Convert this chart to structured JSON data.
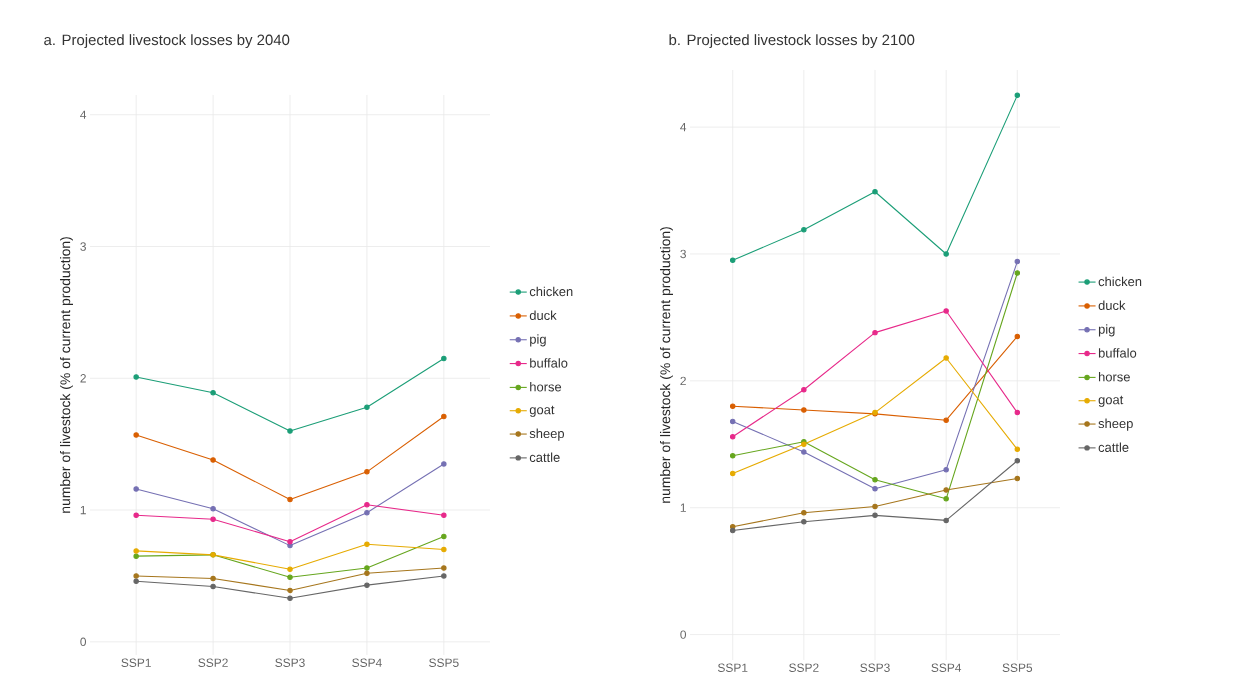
{
  "chart_data": [
    {
      "type": "line",
      "title": "a. Projected livestock losses by 2040",
      "ylabel": "number of livestock (% of current production)",
      "categories": [
        "SSP1",
        "SSP2",
        "SSP3",
        "SSP4",
        "SSP5"
      ],
      "series": [
        {
          "name": "chicken",
          "color": "#1b9e77",
          "values": [
            2.01,
            1.89,
            1.6,
            1.78,
            2.15
          ]
        },
        {
          "name": "duck",
          "color": "#d95f02",
          "values": [
            1.57,
            1.38,
            1.08,
            1.29,
            1.71
          ]
        },
        {
          "name": "pig",
          "color": "#7570b3",
          "values": [
            1.16,
            1.01,
            0.73,
            0.98,
            1.35
          ]
        },
        {
          "name": "buffalo",
          "color": "#e7298a",
          "values": [
            0.96,
            0.93,
            0.76,
            1.04,
            0.96
          ]
        },
        {
          "name": "horse",
          "color": "#66a61e",
          "values": [
            0.65,
            0.66,
            0.49,
            0.56,
            0.8
          ]
        },
        {
          "name": "goat",
          "color": "#e6ab02",
          "values": [
            0.69,
            0.66,
            0.55,
            0.74,
            0.7
          ]
        },
        {
          "name": "sheep",
          "color": "#a6761d",
          "values": [
            0.5,
            0.48,
            0.39,
            0.52,
            0.56
          ]
        },
        {
          "name": "cattle",
          "color": "#666666",
          "values": [
            0.46,
            0.42,
            0.33,
            0.43,
            0.5
          ]
        }
      ],
      "ylim": [
        -0.1,
        4.15
      ],
      "yticks": [
        0,
        1,
        2,
        3,
        4
      ],
      "grid": true,
      "legend": "right",
      "marker": "circle"
    },
    {
      "type": "line",
      "title": "b. Projected livestock losses by 2100",
      "ylabel": "number of livestock (% of current production)",
      "categories": [
        "SSP1",
        "SSP2",
        "SSP3",
        "SSP4",
        "SSP5"
      ],
      "series": [
        {
          "name": "chicken",
          "color": "#1b9e77",
          "values": [
            2.95,
            3.19,
            3.49,
            3.0,
            4.25
          ]
        },
        {
          "name": "duck",
          "color": "#d95f02",
          "values": [
            1.8,
            1.77,
            1.74,
            1.69,
            2.35
          ]
        },
        {
          "name": "pig",
          "color": "#7570b3",
          "values": [
            1.68,
            1.44,
            1.15,
            1.3,
            2.94
          ]
        },
        {
          "name": "buffalo",
          "color": "#e7298a",
          "values": [
            1.56,
            1.93,
            2.38,
            2.55,
            1.75
          ]
        },
        {
          "name": "horse",
          "color": "#66a61e",
          "values": [
            1.41,
            1.52,
            1.22,
            1.07,
            2.85
          ]
        },
        {
          "name": "goat",
          "color": "#e6ab02",
          "values": [
            1.27,
            1.5,
            1.75,
            2.18,
            1.46
          ]
        },
        {
          "name": "sheep",
          "color": "#a6761d",
          "values": [
            0.85,
            0.96,
            1.01,
            1.14,
            1.23
          ]
        },
        {
          "name": "cattle",
          "color": "#666666",
          "values": [
            0.82,
            0.89,
            0.94,
            0.9,
            1.37
          ]
        }
      ],
      "ylim": [
        -0.2,
        4.45
      ],
      "yticks": [
        0,
        1,
        2,
        3,
        4
      ],
      "grid": true,
      "legend": "right",
      "marker": "circle"
    }
  ]
}
